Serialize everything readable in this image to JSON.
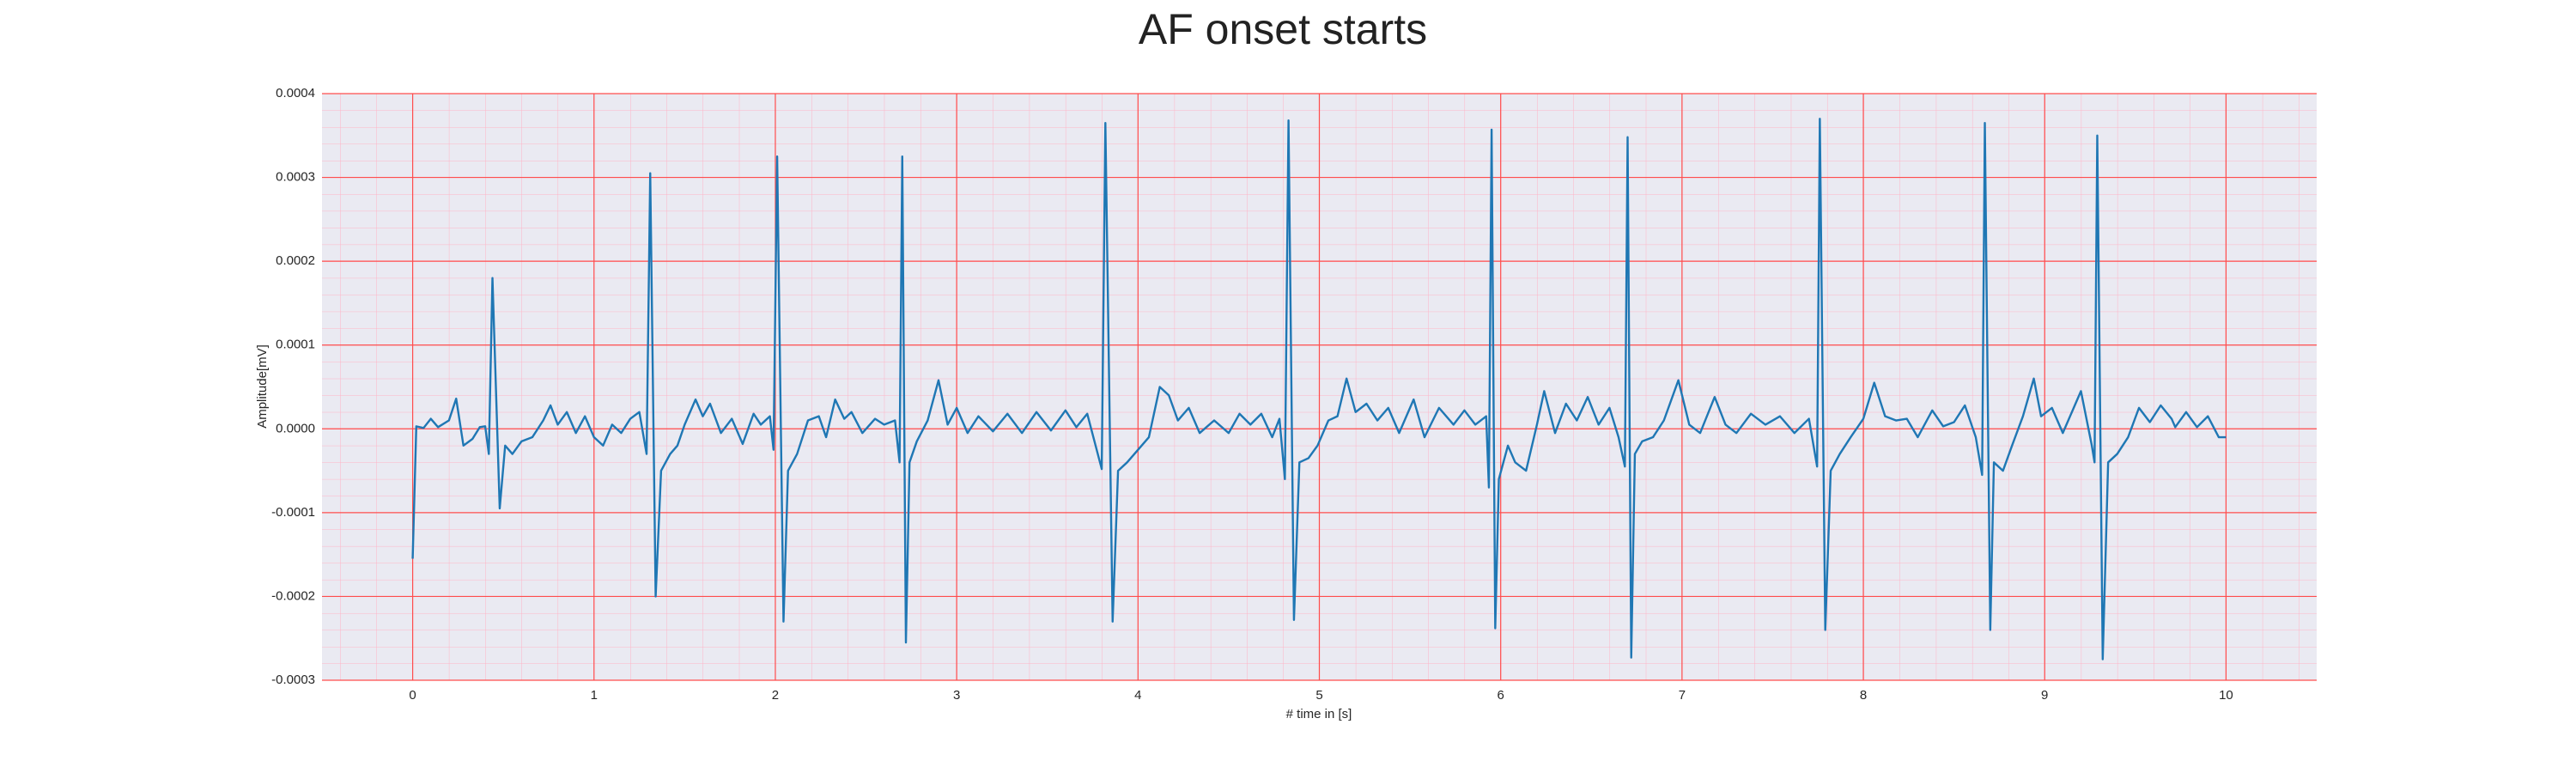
{
  "chart_data": {
    "type": "line",
    "title": "AF onset starts",
    "xlabel": "# time in [s]",
    "ylabel": "Amplitude[mV]",
    "color": "#1f77b4",
    "grid": true,
    "grid_color": "#ff4d4d",
    "background": "#eaeaf2",
    "xlim": [
      -0.5,
      10.5
    ],
    "xticks": [
      0,
      1,
      2,
      3,
      4,
      5,
      6,
      7,
      8,
      9,
      10
    ],
    "ylim": [
      -0.0003,
      0.0004
    ],
    "yticks": [
      {
        "value": -0.0003,
        "label": "-0.0003"
      },
      {
        "value": -0.0002,
        "label": "-0.0002"
      },
      {
        "value": -0.0001,
        "label": "-0.0001"
      },
      {
        "value": 0,
        "label": "0.0000"
      },
      {
        "value": 0.0001,
        "label": "0.0001"
      },
      {
        "value": 0.0002,
        "label": "0.0002"
      },
      {
        "value": 0.0003,
        "label": "0.0003"
      },
      {
        "value": 0.0004,
        "label": "0.0004"
      }
    ],
    "x": [
      0,
      0.02,
      0.06,
      0.1,
      0.14,
      0.2,
      0.24,
      0.28,
      0.33,
      0.37,
      0.4,
      0.42,
      0.44,
      0.48,
      0.51,
      0.55,
      0.6,
      0.66,
      0.72,
      0.76,
      0.8,
      0.85,
      0.9,
      0.95,
      1.0,
      1.05,
      1.1,
      1.15,
      1.2,
      1.25,
      1.29,
      1.31,
      1.34,
      1.37,
      1.42,
      1.46,
      1.5,
      1.56,
      1.6,
      1.64,
      1.7,
      1.76,
      1.82,
      1.88,
      1.92,
      1.97,
      1.99,
      2.01,
      2.045,
      2.07,
      2.12,
      2.18,
      2.24,
      2.28,
      2.33,
      2.38,
      2.42,
      2.48,
      2.55,
      2.6,
      2.66,
      2.685,
      2.7,
      2.72,
      2.74,
      2.78,
      2.84,
      2.9,
      2.95,
      3.0,
      3.06,
      3.12,
      3.2,
      3.28,
      3.36,
      3.44,
      3.52,
      3.6,
      3.66,
      3.72,
      3.8,
      3.82,
      3.86,
      3.89,
      3.94,
      4.0,
      4.06,
      4.12,
      4.17,
      4.22,
      4.28,
      4.34,
      4.42,
      4.5,
      4.56,
      4.62,
      4.68,
      4.74,
      4.78,
      4.81,
      4.83,
      4.86,
      4.89,
      4.94,
      4.99,
      5.05,
      5.1,
      5.15,
      5.2,
      5.26,
      5.32,
      5.38,
      5.44,
      5.52,
      5.58,
      5.66,
      5.74,
      5.8,
      5.86,
      5.92,
      5.935,
      5.95,
      5.97,
      5.99,
      6.04,
      6.08,
      6.14,
      6.2,
      6.24,
      6.3,
      6.36,
      6.42,
      6.48,
      6.54,
      6.6,
      6.65,
      6.685,
      6.7,
      6.72,
      6.74,
      6.78,
      6.84,
      6.9,
      6.98,
      7.04,
      7.1,
      7.18,
      7.24,
      7.3,
      7.38,
      7.46,
      7.54,
      7.62,
      7.7,
      7.745,
      7.76,
      7.79,
      7.82,
      7.87,
      7.93,
      8.0,
      8.06,
      8.12,
      8.18,
      8.24,
      8.3,
      8.38,
      8.44,
      8.5,
      8.56,
      8.62,
      8.655,
      8.67,
      8.7,
      8.72,
      8.77,
      8.82,
      8.88,
      8.94,
      8.98,
      9.04,
      9.1,
      9.2,
      9.26,
      9.275,
      9.29,
      9.32,
      9.35,
      9.4,
      9.46,
      9.52,
      9.58,
      9.64,
      9.7,
      9.72,
      9.78,
      9.84,
      9.9,
      9.96,
      10
    ],
    "values": [
      -0.000155,
      3e-06,
      1e-06,
      1.2e-05,
      2e-06,
      1e-05,
      3.6e-05,
      -2e-05,
      -1.2e-05,
      2e-06,
      3e-06,
      -3e-05,
      0.00018,
      -9.5e-05,
      -2e-05,
      -3e-05,
      -1.5e-05,
      -1e-05,
      1e-05,
      2.8e-05,
      5e-06,
      2e-05,
      -5e-06,
      1.5e-05,
      -1e-05,
      -2e-05,
      5e-06,
      -5e-06,
      1.2e-05,
      2e-05,
      -3e-05,
      0.000305,
      -0.0002,
      -5e-05,
      -3e-05,
      -2e-05,
      5e-06,
      3.5e-05,
      1.5e-05,
      3e-05,
      -5e-06,
      1.2e-05,
      -1.8e-05,
      1.8e-05,
      5e-06,
      1.5e-05,
      -2.5e-05,
      0.000325,
      -0.00023,
      -5e-05,
      -3e-05,
      1e-05,
      1.5e-05,
      -1e-05,
      3.5e-05,
      1.2e-05,
      2e-05,
      -5e-06,
      1.2e-05,
      5e-06,
      1e-05,
      -4e-05,
      0.000325,
      -0.000255,
      -4e-05,
      -1.5e-05,
      1e-05,
      5.8e-05,
      5e-06,
      2.5e-05,
      -5e-06,
      1.5e-05,
      -3e-06,
      1.8e-05,
      -5e-06,
      2e-05,
      -2e-06,
      2.2e-05,
      2e-06,
      1.8e-05,
      -4.8e-05,
      0.000365,
      -0.00023,
      -5e-05,
      -4e-05,
      -2.5e-05,
      -1e-05,
      5e-05,
      4e-05,
      1e-05,
      2.5e-05,
      -5e-06,
      1e-05,
      -5e-06,
      1.8e-05,
      5e-06,
      1.8e-05,
      -1e-05,
      1.2e-05,
      -6e-05,
      0.000368,
      -0.000228,
      -4e-05,
      -3.5e-05,
      -2e-05,
      1e-05,
      1.5e-05,
      6e-05,
      2e-05,
      3e-05,
      1e-05,
      2.5e-05,
      -5e-06,
      3.5e-05,
      -1e-05,
      2.5e-05,
      5e-06,
      2.2e-05,
      5e-06,
      1.5e-05,
      -7e-05,
      0.000357,
      -0.000238,
      -6e-05,
      -2e-05,
      -4e-05,
      -5e-05,
      5e-06,
      4.5e-05,
      -5e-06,
      3e-05,
      1e-05,
      3.8e-05,
      5e-06,
      2.5e-05,
      -1e-05,
      -4.5e-05,
      0.000348,
      -0.000273,
      -3e-05,
      -1.5e-05,
      -1e-05,
      1e-05,
      5.8e-05,
      5e-06,
      -5e-06,
      3.8e-05,
      5e-06,
      -5e-06,
      1.8e-05,
      5e-06,
      1.5e-05,
      -5e-06,
      1.2e-05,
      -4.5e-05,
      0.00037,
      -0.00024,
      -5e-05,
      -3e-05,
      -1e-05,
      1.2e-05,
      5.5e-05,
      1.5e-05,
      1e-05,
      1.2e-05,
      -1e-05,
      2.2e-05,
      3e-06,
      8e-06,
      2.8e-05,
      -1e-05,
      -5.5e-05,
      0.000365,
      -0.00024,
      -4e-05,
      -5e-05,
      -2e-05,
      1.5e-05,
      6e-05,
      1.5e-05,
      2.5e-05,
      -5e-06,
      4.5e-05,
      -2e-05,
      -4e-05,
      0.00035,
      -0.000275,
      -4e-05,
      -3e-05,
      -1e-05,
      2.5e-05,
      8e-06,
      2.8e-05,
      1.2e-05,
      2e-06,
      2e-05,
      2e-06,
      1.5e-05,
      -1e-05,
      -1e-05
    ]
  }
}
